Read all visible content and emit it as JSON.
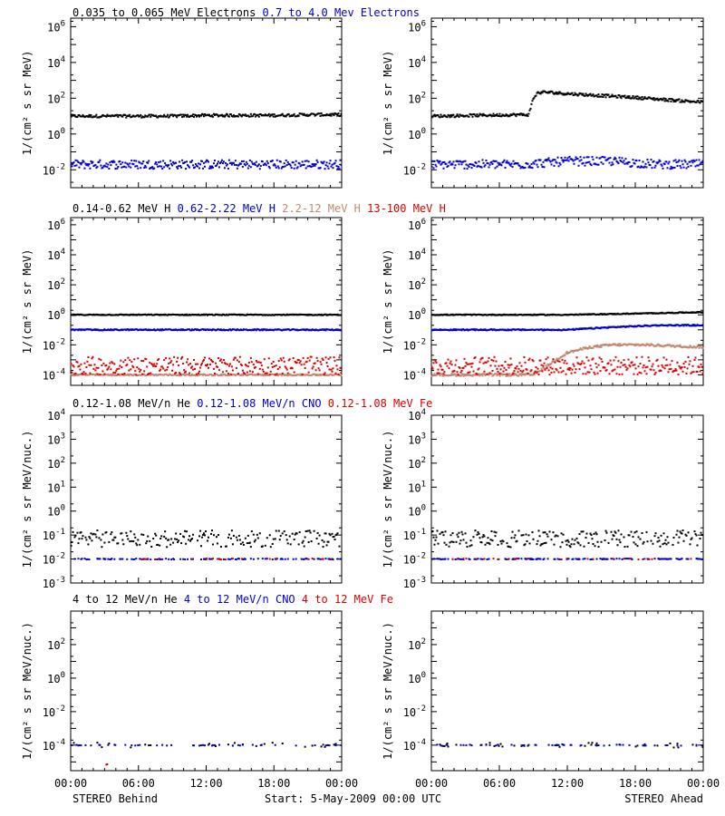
{
  "chart_data": [
    {
      "type": "scatter",
      "row": 1,
      "column": "left",
      "y_scale": "log",
      "ylim": [
        0.001,
        3000000
      ],
      "ytick_labels": [
        {
          "base": "10",
          "exp": "6"
        },
        {
          "base": "10",
          "exp": "4"
        },
        {
          "base": "10",
          "exp": "2"
        },
        {
          "base": "10",
          "exp": "0"
        },
        {
          "base": "10",
          "exp": "-2"
        }
      ],
      "ylabel": "1/(cm² s sr MeV)",
      "xlim_hours": [
        0,
        24
      ],
      "series": [
        {
          "name": "0.035 to 0.065 MeV Electrons",
          "color": "#000000",
          "level": 10,
          "noise": 0.08,
          "points": [
            [
              0,
              10
            ],
            [
              3,
              10
            ],
            [
              6,
              10
            ],
            [
              9,
              10
            ],
            [
              12,
              11
            ],
            [
              15,
              11
            ],
            [
              18,
              11
            ],
            [
              21,
              12
            ],
            [
              24,
              12
            ]
          ]
        },
        {
          "name": "0.7 to 4.0 Mev Electrons",
          "color": "#0000cc",
          "level": 0.02,
          "noise": 0.25,
          "points": [
            [
              0,
              0.02
            ],
            [
              6,
              0.02
            ],
            [
              12,
              0.02
            ],
            [
              18,
              0.02
            ],
            [
              24,
              0.02
            ]
          ]
        }
      ]
    },
    {
      "type": "scatter",
      "row": 1,
      "column": "right",
      "y_scale": "log",
      "ylim": [
        0.001,
        3000000
      ],
      "ytick_labels": [
        {
          "base": "10",
          "exp": "6"
        },
        {
          "base": "10",
          "exp": "4"
        },
        {
          "base": "10",
          "exp": "2"
        },
        {
          "base": "10",
          "exp": "0"
        },
        {
          "base": "10",
          "exp": "-2"
        }
      ],
      "ylabel": "1/(cm² s sr MeV)",
      "xlim_hours": [
        0,
        24
      ],
      "series": [
        {
          "color": "#000000",
          "noise": 0.08,
          "points": [
            [
              0,
              10
            ],
            [
              4,
              11
            ],
            [
              8,
              12
            ],
            [
              8.6,
              12
            ],
            [
              9,
              100
            ],
            [
              9.4,
              200
            ],
            [
              10,
              220
            ],
            [
              12,
              180
            ],
            [
              15,
              140
            ],
            [
              18,
              110
            ],
            [
              21,
              80
            ],
            [
              24,
              60
            ]
          ]
        },
        {
          "color": "#0000cc",
          "noise": 0.25,
          "points": [
            [
              0,
              0.02
            ],
            [
              8,
              0.02
            ],
            [
              12,
              0.03
            ],
            [
              16,
              0.03
            ],
            [
              20,
              0.02
            ],
            [
              24,
              0.02
            ]
          ]
        }
      ]
    },
    {
      "type": "scatter",
      "row": 2,
      "column": "left",
      "y_scale": "log",
      "ylim": [
        2e-05,
        3000000
      ],
      "ytick_labels": [
        {
          "base": "10",
          "exp": "6"
        },
        {
          "base": "10",
          "exp": "4"
        },
        {
          "base": "10",
          "exp": "2"
        },
        {
          "base": "10",
          "exp": "0"
        },
        {
          "base": "10",
          "exp": "-2"
        },
        {
          "base": "10",
          "exp": "-4"
        }
      ],
      "ylabel": "1/(cm² s sr MeV)",
      "xlim_hours": [
        0,
        24
      ],
      "series": [
        {
          "name": "0.14-0.62 MeV H",
          "color": "#000000",
          "noise": 0.03,
          "points": [
            [
              0,
              1
            ],
            [
              12,
              1
            ],
            [
              24,
              1
            ]
          ]
        },
        {
          "name": "0.62-2.22 MeV H",
          "color": "#0000cc",
          "noise": 0.04,
          "points": [
            [
              0,
              0.1
            ],
            [
              12,
              0.1
            ],
            [
              24,
              0.1
            ]
          ]
        },
        {
          "name": "2.2-12 MeV H",
          "color": "#c08870",
          "noise": 0.05,
          "points": [
            [
              0,
              0.0001
            ],
            [
              24,
              0.0001
            ]
          ]
        },
        {
          "name": "13-100 MeV H",
          "color": "#dd0000",
          "noise": 0.6,
          "points": [
            [
              0,
              0.0004
            ],
            [
              24,
              0.0004
            ]
          ]
        }
      ]
    },
    {
      "type": "scatter",
      "row": 2,
      "column": "right",
      "y_scale": "log",
      "ylim": [
        2e-05,
        3000000
      ],
      "ytick_labels": [
        {
          "base": "10",
          "exp": "6"
        },
        {
          "base": "10",
          "exp": "4"
        },
        {
          "base": "10",
          "exp": "2"
        },
        {
          "base": "10",
          "exp": "0"
        },
        {
          "base": "10",
          "exp": "-2"
        },
        {
          "base": "10",
          "exp": "-4"
        }
      ],
      "ylabel": "1/(cm² s sr MeV)",
      "xlim_hours": [
        0,
        24
      ],
      "series": [
        {
          "color": "#000000",
          "noise": 0.03,
          "points": [
            [
              0,
              1
            ],
            [
              12,
              1
            ],
            [
              18,
              1.2
            ],
            [
              24,
              1.5
            ]
          ]
        },
        {
          "color": "#0000cc",
          "noise": 0.04,
          "points": [
            [
              0,
              0.1
            ],
            [
              12,
              0.1
            ],
            [
              16,
              0.15
            ],
            [
              20,
              0.2
            ],
            [
              24,
              0.2
            ]
          ]
        },
        {
          "color": "#c08870",
          "noise": 0.08,
          "points": [
            [
              0,
              0.0001
            ],
            [
              9,
              0.0001
            ],
            [
              10,
              0.0003
            ],
            [
              11,
              0.001
            ],
            [
              12,
              0.003
            ],
            [
              14,
              0.007
            ],
            [
              16,
              0.01
            ],
            [
              19,
              0.01
            ],
            [
              24,
              0.007
            ]
          ]
        },
        {
          "color": "#dd0000",
          "noise": 0.6,
          "points": [
            [
              0,
              0.0004
            ],
            [
              24,
              0.0004
            ]
          ]
        }
      ]
    },
    {
      "type": "scatter",
      "row": 3,
      "column": "left",
      "y_scale": "log",
      "ylim": [
        0.001,
        10000
      ],
      "ytick_labels": [
        {
          "base": "10",
          "exp": "4"
        },
        {
          "base": "10",
          "exp": "3"
        },
        {
          "base": "10",
          "exp": "2"
        },
        {
          "base": "10",
          "exp": "1"
        },
        {
          "base": "10",
          "exp": "0"
        },
        {
          "base": "10",
          "exp": "-1"
        },
        {
          "base": "10",
          "exp": "-2"
        },
        {
          "base": "10",
          "exp": "-3"
        }
      ],
      "ylabel": "1/(cm² s sr MeV/nuc.)",
      "xlim_hours": [
        0,
        24
      ],
      "series": [
        {
          "name": "0.12-1.08 MeV/n He",
          "color": "#000000",
          "noise": 0.35,
          "density": 0.7,
          "points": [
            [
              0,
              0.07
            ],
            [
              24,
              0.07
            ]
          ]
        },
        {
          "name": "0.12-1.08 MeV/n CNO",
          "color": "#0000cc",
          "noise": 0.02,
          "density": 0.4,
          "points": [
            [
              0,
              0.01
            ],
            [
              24,
              0.01
            ]
          ]
        },
        {
          "name": "0.12-1.08 MeV Fe",
          "color": "#dd0000",
          "noise": 0.02,
          "density": 0.05,
          "points": [
            [
              0,
              0.01
            ],
            [
              24,
              0.01
            ]
          ]
        }
      ]
    },
    {
      "type": "scatter",
      "row": 3,
      "column": "right",
      "y_scale": "log",
      "ylim": [
        0.001,
        10000
      ],
      "ytick_labels": [
        {
          "base": "10",
          "exp": "4"
        },
        {
          "base": "10",
          "exp": "3"
        },
        {
          "base": "10",
          "exp": "2"
        },
        {
          "base": "10",
          "exp": "1"
        },
        {
          "base": "10",
          "exp": "0"
        },
        {
          "base": "10",
          "exp": "-1"
        },
        {
          "base": "10",
          "exp": "-2"
        },
        {
          "base": "10",
          "exp": "-3"
        }
      ],
      "ylabel": "1/(cm² s sr MeV/nuc.)",
      "xlim_hours": [
        0,
        24
      ],
      "series": [
        {
          "color": "#000000",
          "noise": 0.35,
          "density": 0.7,
          "points": [
            [
              0,
              0.07
            ],
            [
              24,
              0.07
            ]
          ]
        },
        {
          "color": "#0000cc",
          "noise": 0.02,
          "density": 0.4,
          "points": [
            [
              0,
              0.01
            ],
            [
              24,
              0.01
            ]
          ]
        },
        {
          "color": "#dd0000",
          "noise": 0.02,
          "density": 0.07,
          "points": [
            [
              0,
              0.01
            ],
            [
              24,
              0.01
            ]
          ]
        }
      ]
    },
    {
      "type": "scatter",
      "row": 4,
      "column": "left",
      "y_scale": "log",
      "ylim": [
        3e-06,
        10000
      ],
      "ytick_labels": [
        {
          "base": "10",
          "exp": "2"
        },
        {
          "base": "10",
          "exp": "0"
        },
        {
          "base": "10",
          "exp": "-2"
        },
        {
          "base": "10",
          "exp": "-4"
        }
      ],
      "ylabel": "1/(cm² s sr MeV/nuc.)",
      "xlim_hours": [
        0,
        24
      ],
      "series": [
        {
          "name": "4 to 12 MeV/n He",
          "color": "#000000",
          "noise": 0.15,
          "density": 0.12,
          "points": [
            [
              0,
              0.0001
            ],
            [
              24,
              0.0001
            ]
          ]
        },
        {
          "name": "4 to 12 MeV/n CNO",
          "color": "#0000cc",
          "noise": 0.03,
          "density": 0.15,
          "points": [
            [
              0,
              0.0001
            ],
            [
              24,
              0.0001
            ]
          ]
        },
        {
          "name": "4 to 12 MeV Fe",
          "color": "#dd0000",
          "noise": 0.02,
          "density": 0.01,
          "points": [
            [
              0,
              7e-06
            ],
            [
              24,
              7e-06
            ]
          ]
        }
      ]
    },
    {
      "type": "scatter",
      "row": 4,
      "column": "right",
      "y_scale": "log",
      "ylim": [
        3e-06,
        10000
      ],
      "ytick_labels": [
        {
          "base": "10",
          "exp": "2"
        },
        {
          "base": "10",
          "exp": "0"
        },
        {
          "base": "10",
          "exp": "-2"
        },
        {
          "base": "10",
          "exp": "-4"
        }
      ],
      "ylabel": "1/(cm² s sr MeV/nuc.)",
      "xlim_hours": [
        0,
        24
      ],
      "series": [
        {
          "color": "#000000",
          "noise": 0.15,
          "density": 0.12,
          "points": [
            [
              0,
              0.0001
            ],
            [
              24,
              0.0001
            ]
          ]
        },
        {
          "color": "#0000cc",
          "noise": 0.03,
          "density": 0.18,
          "points": [
            [
              0,
              0.0001
            ],
            [
              24,
              0.0001
            ]
          ]
        },
        {
          "color": "#dd0000",
          "noise": 0.02,
          "density": 0.0,
          "points": [
            [
              0,
              7e-06
            ],
            [
              24,
              7e-06
            ]
          ]
        }
      ]
    }
  ],
  "time_axis": {
    "labels": [
      "00:00",
      "06:00",
      "12:00",
      "18:00",
      "00:00"
    ]
  },
  "footer": {
    "left": "STEREO Behind",
    "center": "Start:  5-May-2009 00:00 UTC",
    "right": "STEREO Ahead"
  }
}
